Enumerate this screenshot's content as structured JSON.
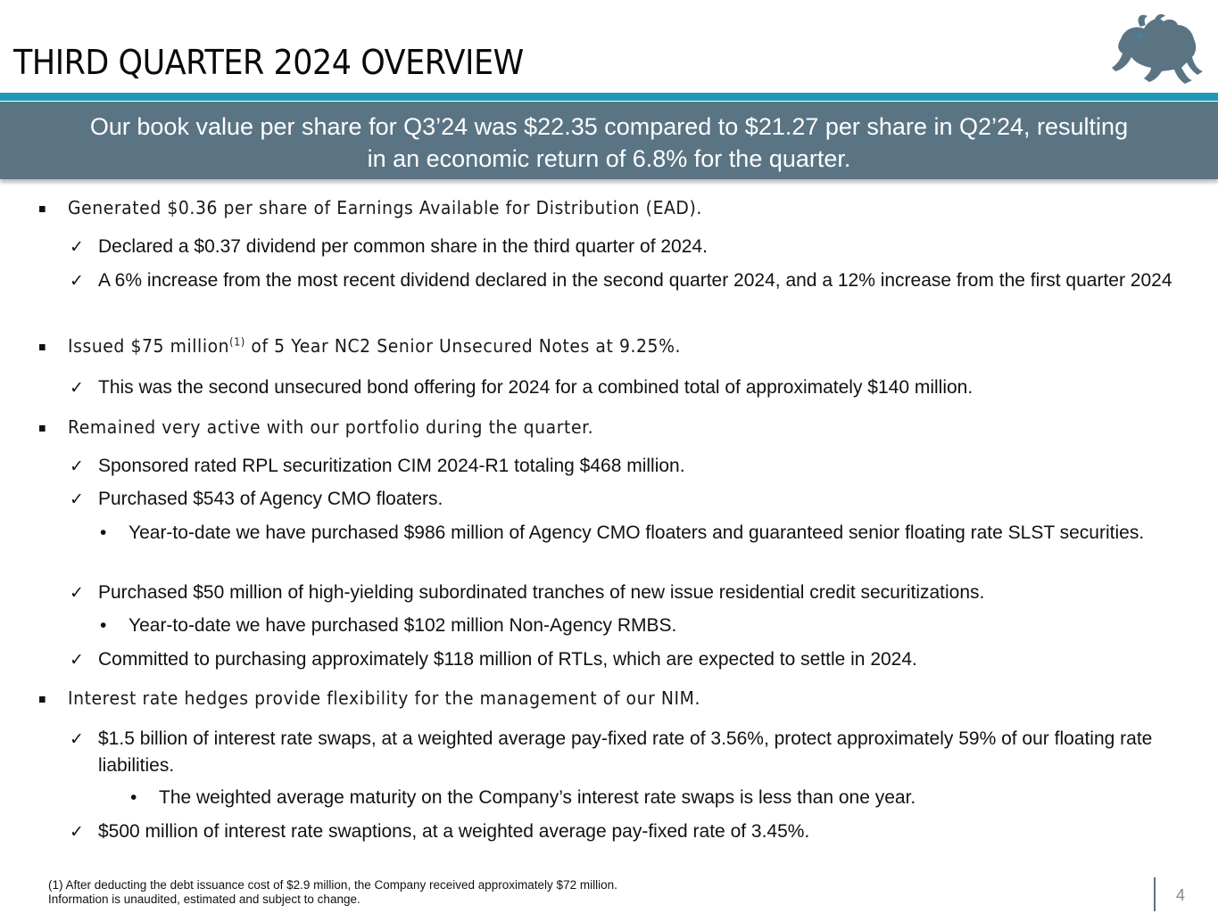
{
  "header": {
    "title": "THIRD QUARTER 2024 OVERVIEW",
    "logo_icon": "lion-logo-icon",
    "accent_color": "#1f9ab5",
    "banner_color": "#5a7484"
  },
  "banner": {
    "line1": "Our book value per share for Q3’24 was $22.35 compared to $21.27 per share in Q2’24, resulting",
    "line2": "in an economic return of 6.8% for the quarter."
  },
  "bullets": {
    "b1": {
      "text": "Generated $0.36 per share of Earnings Available for Distribution (EAD)."
    },
    "b1_c1": "Declared a $0.37 dividend per common share in the third quarter of 2024.",
    "b1_c2": "A 6% increase from the most recent dividend declared in the second quarter 2024, and a 12% increase from the first quarter 2024",
    "b2": {
      "text_before": "Issued $75 million",
      "superscript": "(1)",
      "text_after": " of 5 Year NC2 Senior Unsecured Notes at 9.25%."
    },
    "b2_c1": "This was the second unsecured bond offering for 2024 for a combined total of approximately $140 million.",
    "b3": {
      "text": "Remained very active with our portfolio during the quarter."
    },
    "b3_c1": "Sponsored rated RPL securitization CIM 2024-R1 totaling $468 million.",
    "b3_c2": "Purchased $543 of Agency CMO floaters.",
    "b3_c2_s1": "Year-to-date we have purchased $986 million of Agency CMO floaters and guaranteed senior floating rate SLST securities.",
    "b3_c3": "Purchased $50 million of high-yielding subordinated tranches of new issue residential credit securitizations.",
    "b3_c3_s1": "Year-to-date we have purchased $102 million Non-Agency RMBS.",
    "b3_c4": "Committed to purchasing approximately $118 million of RTLs, which are expected to settle in 2024.",
    "b4": {
      "text": "Interest rate hedges provide flexibility for the management of our NIM."
    },
    "b4_c1": "$1.5 billion of interest rate swaps, at a weighted average pay-fixed rate of 3.56%, protect approximately 59% of our floating rate liabilities.",
    "b4_c1_s1": "The weighted average maturity on the Company’s interest rate swaps is less than one year.",
    "b4_c2": "$500 million of interest rate swaptions, at a weighted average pay-fixed rate of 3.45%."
  },
  "footer": {
    "footnote1": "(1) After deducting the debt issuance cost of $2.9 million, the Company received approximately $72 million.",
    "footnote2": "Information is unaudited, estimated and subject to change.",
    "page_number": "4"
  }
}
